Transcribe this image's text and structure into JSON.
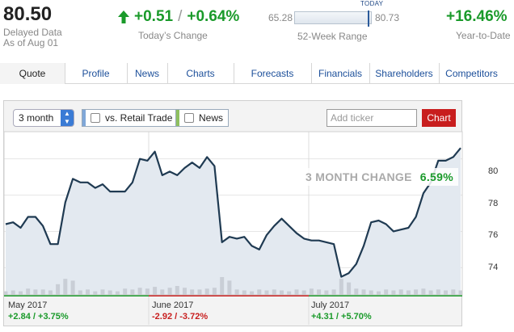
{
  "quote": {
    "price": "80.50",
    "delayed": "Delayed Data",
    "as_of": "As of Aug 01",
    "change_abs": "+0.51",
    "separator": "/",
    "change_pct": "+0.64%",
    "change_label": "Today’s Change",
    "range_low": "65.28",
    "range_high": "80.73",
    "range_label": "52-Week Range",
    "range_position": 0.985,
    "today_label": "TODAY",
    "ytd": "+16.46%",
    "ytd_label": "Year-to-Date"
  },
  "tabs": [
    {
      "label": "Quote",
      "active": true
    },
    {
      "label": "Profile",
      "active": false
    },
    {
      "label": "News",
      "active": false
    },
    {
      "label": "Charts",
      "active": false
    },
    {
      "label": "Forecasts",
      "active": false
    },
    {
      "label": "Financials",
      "active": false
    },
    {
      "label": "Shareholders",
      "active": false
    },
    {
      "label": "Competitors",
      "active": false
    }
  ],
  "controls": {
    "period": "3 month",
    "compare_label": "vs. Retail Trade",
    "news_label": "News",
    "ticker_placeholder": "Add ticker",
    "chart_button": "Chart"
  },
  "colors": {
    "up": "#1a9a2a",
    "down": "#c81e1e",
    "line": "#1f3a52",
    "area": "#e3e9f0",
    "volume": "#c9ced6",
    "compare_stripe": "#7fa7d8",
    "news_stripe": "#8fc060"
  },
  "change_box": {
    "label": "3 MONTH CHANGE",
    "value": "6.59%"
  },
  "periods": [
    {
      "label": "May 2017",
      "abs": "+2.84",
      "pct": "+3.75%",
      "dir": "up"
    },
    {
      "label": "June 2017",
      "abs": "-2.92",
      "pct": "-3.72%",
      "dir": "down"
    },
    {
      "label": "July 2017",
      "abs": "+4.31",
      "pct": "+5.70%",
      "dir": "up"
    }
  ],
  "chart_data": {
    "type": "area",
    "y_ticks": [
      "74",
      "76",
      "78",
      "80"
    ],
    "ylim": [
      72.5,
      81.5
    ],
    "grid": true,
    "values": [
      76.4,
      76.5,
      76.2,
      76.8,
      76.8,
      76.3,
      75.3,
      75.3,
      77.6,
      78.9,
      78.7,
      78.7,
      78.4,
      78.6,
      78.2,
      78.2,
      78.2,
      78.7,
      80.0,
      79.9,
      80.4,
      79.1,
      79.3,
      79.1,
      79.5,
      79.8,
      79.5,
      80.1,
      79.6,
      75.4,
      75.7,
      75.6,
      75.7,
      75.2,
      75.0,
      75.8,
      76.3,
      76.7,
      76.3,
      75.9,
      75.6,
      75.5,
      75.5,
      75.4,
      75.3,
      73.5,
      73.7,
      74.2,
      75.2,
      76.5,
      76.6,
      76.4,
      76.0,
      76.1,
      76.2,
      76.8,
      78.1,
      78.7,
      79.9,
      79.9,
      80.1,
      80.6
    ],
    "volume": [
      0.2,
      0.25,
      0.2,
      0.35,
      0.3,
      0.3,
      0.25,
      0.6,
      0.9,
      0.8,
      0.25,
      0.3,
      0.2,
      0.3,
      0.25,
      0.2,
      0.35,
      0.3,
      0.4,
      0.35,
      0.45,
      0.3,
      0.4,
      0.5,
      0.4,
      0.3,
      0.3,
      0.35,
      0.4,
      1.0,
      0.8,
      0.3,
      0.25,
      0.2,
      0.3,
      0.25,
      0.3,
      0.25,
      0.2,
      0.3,
      0.25,
      0.35,
      0.3,
      0.25,
      0.3,
      0.9,
      0.7,
      0.35,
      0.3,
      0.25,
      0.2,
      0.3,
      0.25,
      0.3,
      0.25,
      0.3,
      0.35,
      0.25,
      0.3,
      0.25,
      0.3,
      0.25
    ]
  }
}
